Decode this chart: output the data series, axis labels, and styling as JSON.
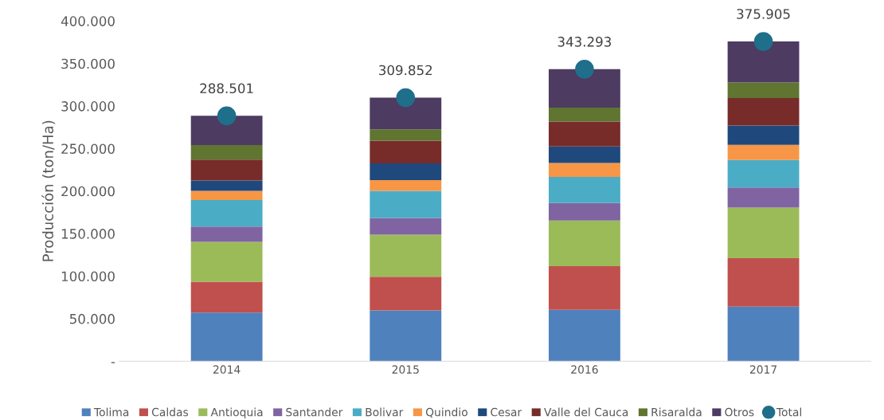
{
  "chart_data": {
    "type": "bar",
    "stacked": true,
    "ylabel": "Producción (ton/Ha)",
    "categories": [
      "2014",
      "2015",
      "2016",
      "2017"
    ],
    "ylim": [
      0,
      400000
    ],
    "yticks": [
      {
        "value": 0,
        "label": "-"
      },
      {
        "value": 50000,
        "label": "50.000"
      },
      {
        "value": 100000,
        "label": "100.000"
      },
      {
        "value": 150000,
        "label": "150.000"
      },
      {
        "value": 200000,
        "label": "200.000"
      },
      {
        "value": 250000,
        "label": "250.000"
      },
      {
        "value": 300000,
        "label": "300.000"
      },
      {
        "value": 350000,
        "label": "350.000"
      },
      {
        "value": 400000,
        "label": "400.000"
      }
    ],
    "grid": false,
    "legend": "bottom",
    "series": [
      {
        "name": "Tolima",
        "color": "#4f81bd",
        "values": [
          57100,
          59700,
          60500,
          64200
        ]
      },
      {
        "name": "Caldas",
        "color": "#c0504d",
        "values": [
          36400,
          39700,
          51300,
          56800
        ]
      },
      {
        "name": "Antioquia",
        "color": "#9bbb59",
        "values": [
          46900,
          49300,
          53600,
          59500
        ]
      },
      {
        "name": "Santander",
        "color": "#8064a2",
        "values": [
          18000,
          19700,
          20500,
          23800
        ]
      },
      {
        "name": "Bolivar",
        "color": "#4bacc6",
        "values": [
          31100,
          31800,
          30800,
          32300
        ]
      },
      {
        "name": "Quindio",
        "color": "#f79646",
        "values": [
          10800,
          12700,
          16400,
          17700
        ]
      },
      {
        "name": "Cesar",
        "color": "#1f497d",
        "values": [
          12100,
          19700,
          19500,
          22800
        ]
      },
      {
        "name": "Valle del Cauca",
        "color": "#772c2a",
        "values": [
          24700,
          26700,
          29300,
          32300
        ]
      },
      {
        "name": "Risaralda",
        "color": "#5f7530",
        "values": [
          17100,
          13400,
          16400,
          18400
        ]
      },
      {
        "name": "Otros",
        "color": "#4d3b62",
        "values": [
          34300,
          37200,
          45000,
          48100
        ]
      },
      {
        "name": "Total",
        "type": "scatter",
        "marker": "circle",
        "color": "#1f6f8b",
        "values": [
          288501,
          309852,
          343293,
          375905
        ],
        "value_labels": [
          "288.501",
          "309.852",
          "343.293",
          "375.905"
        ]
      }
    ]
  }
}
